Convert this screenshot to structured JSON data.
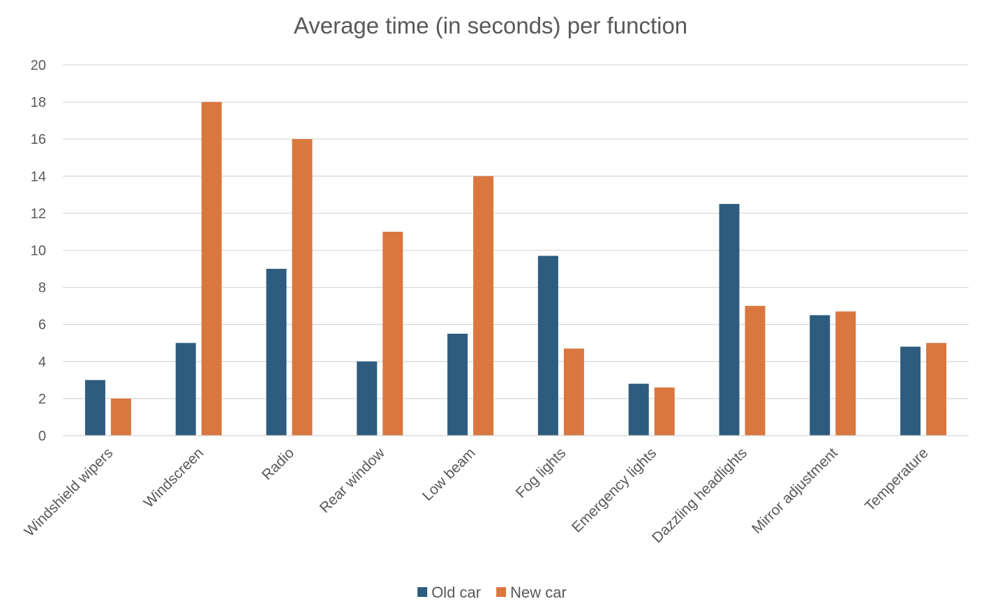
{
  "chart_data": {
    "type": "bar",
    "title": "Average time (in seconds) per function",
    "xlabel": "",
    "ylabel": "",
    "ylim": [
      0,
      20
    ],
    "yticks": [
      0,
      2,
      4,
      6,
      8,
      10,
      12,
      14,
      16,
      18,
      20
    ],
    "grid": true,
    "legend_position": "bottom",
    "categories": [
      "Windshield wipers",
      "Windscreen",
      "Radio",
      "Rear window",
      "Low beam",
      "Fog lights",
      "Emergency lights",
      "Dazzling headlights",
      "Mirror adjustment",
      "Temperature"
    ],
    "series": [
      {
        "name": "Old car",
        "color": "#2e5c7f",
        "values": [
          3,
          5,
          9,
          4,
          5.5,
          9.7,
          2.8,
          12.5,
          6.5,
          4.8
        ]
      },
      {
        "name": "New car",
        "color": "#d9773f",
        "values": [
          2,
          18,
          16,
          11,
          14,
          4.7,
          2.6,
          7,
          6.7,
          5
        ]
      }
    ]
  }
}
